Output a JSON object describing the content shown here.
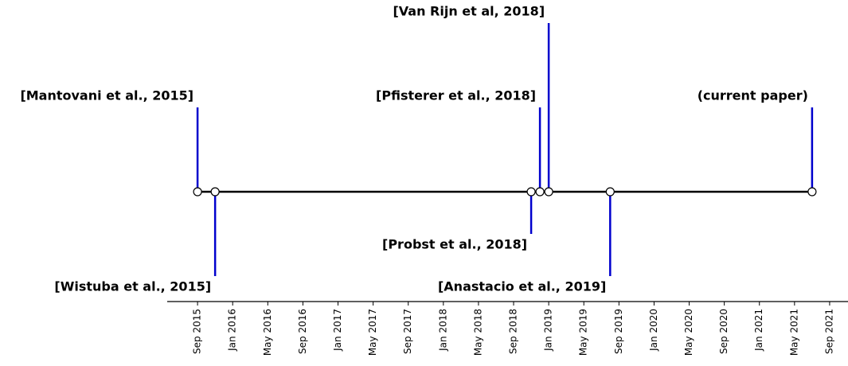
{
  "chart_data": {
    "type": "timeline",
    "categories": [
      "[Mantovani et al., 2015]",
      "[Wistuba et al., 2015]",
      "[Probst et al., 2018]",
      "[Pfisterer et al., 2018]",
      "[Van Rijn et al, 2018]",
      "[Anastacio et al., 2019]",
      "(current paper)"
    ],
    "x": [
      "2015-09",
      "2015-11",
      "2018-11",
      "2018-12",
      "2019-01",
      "2019-08",
      "2021-07"
    ],
    "values": [
      1,
      -1,
      -0.5,
      1,
      2,
      -1,
      1
    ],
    "color": "#0000cd",
    "xlim": [
      "2015-05",
      "2021-11"
    ],
    "xticks": [
      {
        "value": "2015-09",
        "label": "Sep 2015"
      },
      {
        "value": "2016-01",
        "label": "Jan 2016"
      },
      {
        "value": "2016-05",
        "label": "May 2016"
      },
      {
        "value": "2016-09",
        "label": "Sep 2016"
      },
      {
        "value": "2017-01",
        "label": "Jan 2017"
      },
      {
        "value": "2017-05",
        "label": "May 2017"
      },
      {
        "value": "2017-09",
        "label": "Sep 2017"
      },
      {
        "value": "2018-01",
        "label": "Jan 2018"
      },
      {
        "value": "2018-05",
        "label": "May 2018"
      },
      {
        "value": "2018-09",
        "label": "Sep 2018"
      },
      {
        "value": "2019-01",
        "label": "Jan 2019"
      },
      {
        "value": "2019-05",
        "label": "May 2019"
      },
      {
        "value": "2019-09",
        "label": "Sep 2019"
      },
      {
        "value": "2020-01",
        "label": "Jan 2020"
      },
      {
        "value": "2020-05",
        "label": "May 2020"
      },
      {
        "value": "2020-09",
        "label": "Sep 2020"
      },
      {
        "value": "2021-01",
        "label": "Jan 2021"
      },
      {
        "value": "2021-05",
        "label": "May 2021"
      },
      {
        "value": "2021-09",
        "label": "Sep 2021"
      }
    ]
  }
}
